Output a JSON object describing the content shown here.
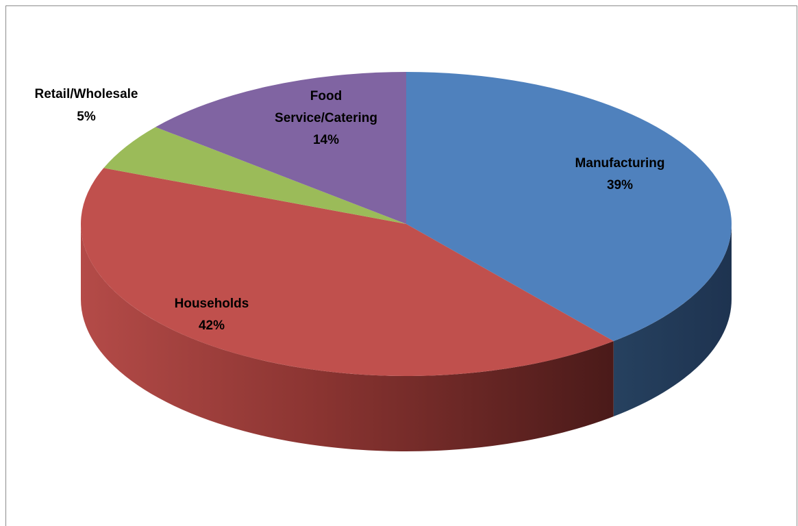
{
  "chart_data": {
    "type": "pie",
    "title": "",
    "is_3d": true,
    "legend": "none",
    "slices": [
      {
        "name": "Manufacturing",
        "value": 39,
        "value_label": "39%",
        "color": "#4f81bd"
      },
      {
        "name": "Households",
        "value": 42,
        "value_label": "42%",
        "color": "#c0504d"
      },
      {
        "name": "Retail/Wholesale",
        "value": 5,
        "value_label": "5%",
        "color": "#9bbb59"
      },
      {
        "name": "Food Service/Catering",
        "value": 14,
        "value_label": "14%",
        "color": "#8064a2"
      }
    ]
  }
}
